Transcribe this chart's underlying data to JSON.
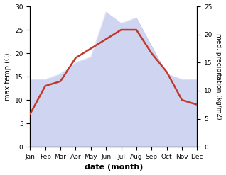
{
  "months": [
    "Jan",
    "Feb",
    "Mar",
    "Apr",
    "May",
    "Jun",
    "Jul",
    "Aug",
    "Sep",
    "Oct",
    "Nov",
    "Dec"
  ],
  "max_temp": [
    7.0,
    13.0,
    14.0,
    19.0,
    21.0,
    23.0,
    25.0,
    25.0,
    20.0,
    16.0,
    10.0,
    9.0
  ],
  "med_precip": [
    12.0,
    12.0,
    13.0,
    15.0,
    16.0,
    24.0,
    22.0,
    23.0,
    18.0,
    13.0,
    12.0,
    12.0
  ],
  "temp_color": "#c0392b",
  "fill_color": "#b0b8e8",
  "ylabel_left": "max temp (C)",
  "ylabel_right": "med. precipitation (kg/m2)",
  "xlabel": "date (month)",
  "ylim_left": [
    0,
    30
  ],
  "ylim_right": [
    0,
    25
  ],
  "yticks_left": [
    0,
    5,
    10,
    15,
    20,
    25,
    30
  ],
  "yticks_right": [
    0,
    5,
    10,
    15,
    20,
    25
  ],
  "fill_alpha": 0.6,
  "line_width": 1.8
}
